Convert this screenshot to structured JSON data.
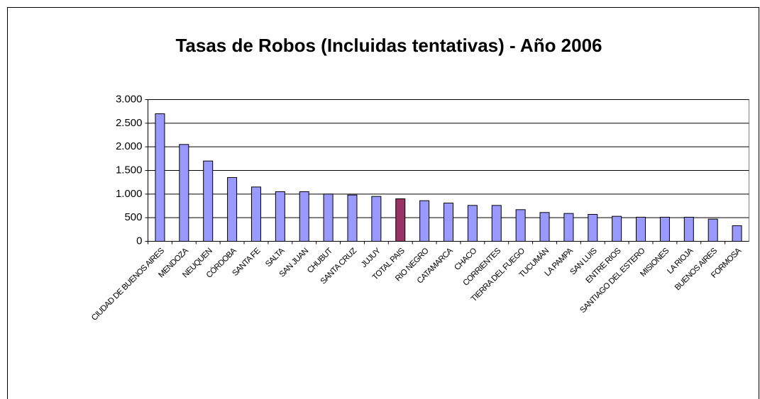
{
  "chart_data": {
    "type": "bar",
    "title": "Tasas de Robos (Incluidas tentativas) - Año 2006",
    "categories": [
      "CIUDAD DE BUENOS AIRES",
      "MENDOZA",
      "NEUQUEN",
      "CÓRDOBA",
      "SANTA FE",
      "SALTA",
      "SAN JUAN",
      "CHUBUT",
      "SANTA CRUZ",
      "JUJUY",
      "TOTAL PAIS",
      "RIO NEGRO",
      "CATAMARCA",
      "CHACO",
      "CORRIENTES",
      "TIERRA DEL FUEGO",
      "TUCUMÁN",
      "LA PAMPA",
      "SAN LUIS",
      "ENTRE RIOS",
      "SANTIAGO DEL ESTERO",
      "MISIONES",
      "LA RIOJA",
      "BUENOS AIRES",
      "FORMOSA"
    ],
    "values": [
      2700,
      2050,
      1700,
      1350,
      1150,
      1050,
      1050,
      1000,
      980,
      950,
      900,
      860,
      810,
      760,
      760,
      670,
      610,
      590,
      570,
      530,
      510,
      510,
      510,
      470,
      330
    ],
    "colors": [
      "#9999ff",
      "#9999ff",
      "#9999ff",
      "#9999ff",
      "#9999ff",
      "#9999ff",
      "#9999ff",
      "#9999ff",
      "#9999ff",
      "#9999ff",
      "#993366",
      "#9999ff",
      "#9999ff",
      "#9999ff",
      "#9999ff",
      "#9999ff",
      "#9999ff",
      "#9999ff",
      "#9999ff",
      "#9999ff",
      "#9999ff",
      "#9999ff",
      "#9999ff",
      "#9999ff",
      "#9999ff"
    ],
    "ylim": [
      0,
      3000
    ],
    "yticks": [
      0,
      {
        "value": 500,
        "label": "500"
      },
      {
        "value": 1000,
        "label": "1.000"
      },
      {
        "value": 1500,
        "label": "1.500"
      },
      {
        "value": 2000,
        "label": "2.000"
      },
      {
        "value": 2500,
        "label": "2.500"
      },
      {
        "value": 3000,
        "label": "3.000"
      }
    ],
    "grid": true
  }
}
